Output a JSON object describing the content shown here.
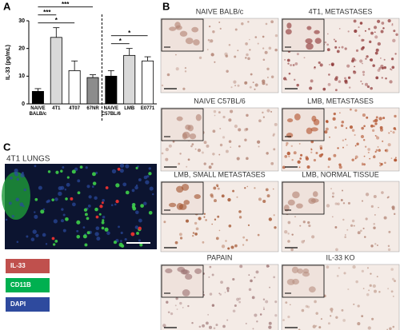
{
  "panel_labels": [
    "A",
    "B",
    "C"
  ],
  "chart_data": {
    "type": "bar",
    "ylabel": "IL-33 (pg/mL)",
    "categories": [
      "NAIVE BALB/c",
      "4T1",
      "4T07",
      "67NR",
      "NAIVE C57BL/6",
      "LMB",
      "E0771"
    ],
    "values": [
      4.5,
      24,
      12,
      9.5,
      10,
      17.5,
      15.5
    ],
    "errors": [
      1,
      3.5,
      3.5,
      1,
      2,
      2.5,
      1.5
    ],
    "colors": [
      "#000000",
      "#d9d9d9",
      "#ffffff",
      "#8c8c8c",
      "#000000",
      "#d9d9d9",
      "#ffffff"
    ],
    "ylim": [
      0,
      30
    ],
    "yticks": [
      0,
      10,
      20,
      30
    ],
    "annotations": [
      {
        "text": "***",
        "from": 0,
        "to": 3
      },
      {
        "text": "***",
        "from": 0,
        "to": 1
      },
      {
        "text": "*",
        "from": 0,
        "to": 2
      },
      {
        "text": "*",
        "from": 4,
        "to": 6
      },
      {
        "text": "*",
        "from": 4,
        "to": 5
      }
    ]
  },
  "micrographs": [
    "NAIVE BALB/c",
    "4T1, METASTASES",
    "NAIVE C57BL/6",
    "LMB, METASTASES",
    "LMB, SMALL METASTASES",
    "LMB, NORMAL TISSUE",
    "PAPAIN",
    "IL-33 KO"
  ],
  "panel_c": {
    "title": "4T1 LUNGS",
    "legend": [
      {
        "label": "IL-33",
        "color": "#c0504d"
      },
      {
        "label": "CD11B",
        "color": "#00b050"
      },
      {
        "label": "DAPI",
        "color": "#2e4a9e"
      }
    ]
  }
}
